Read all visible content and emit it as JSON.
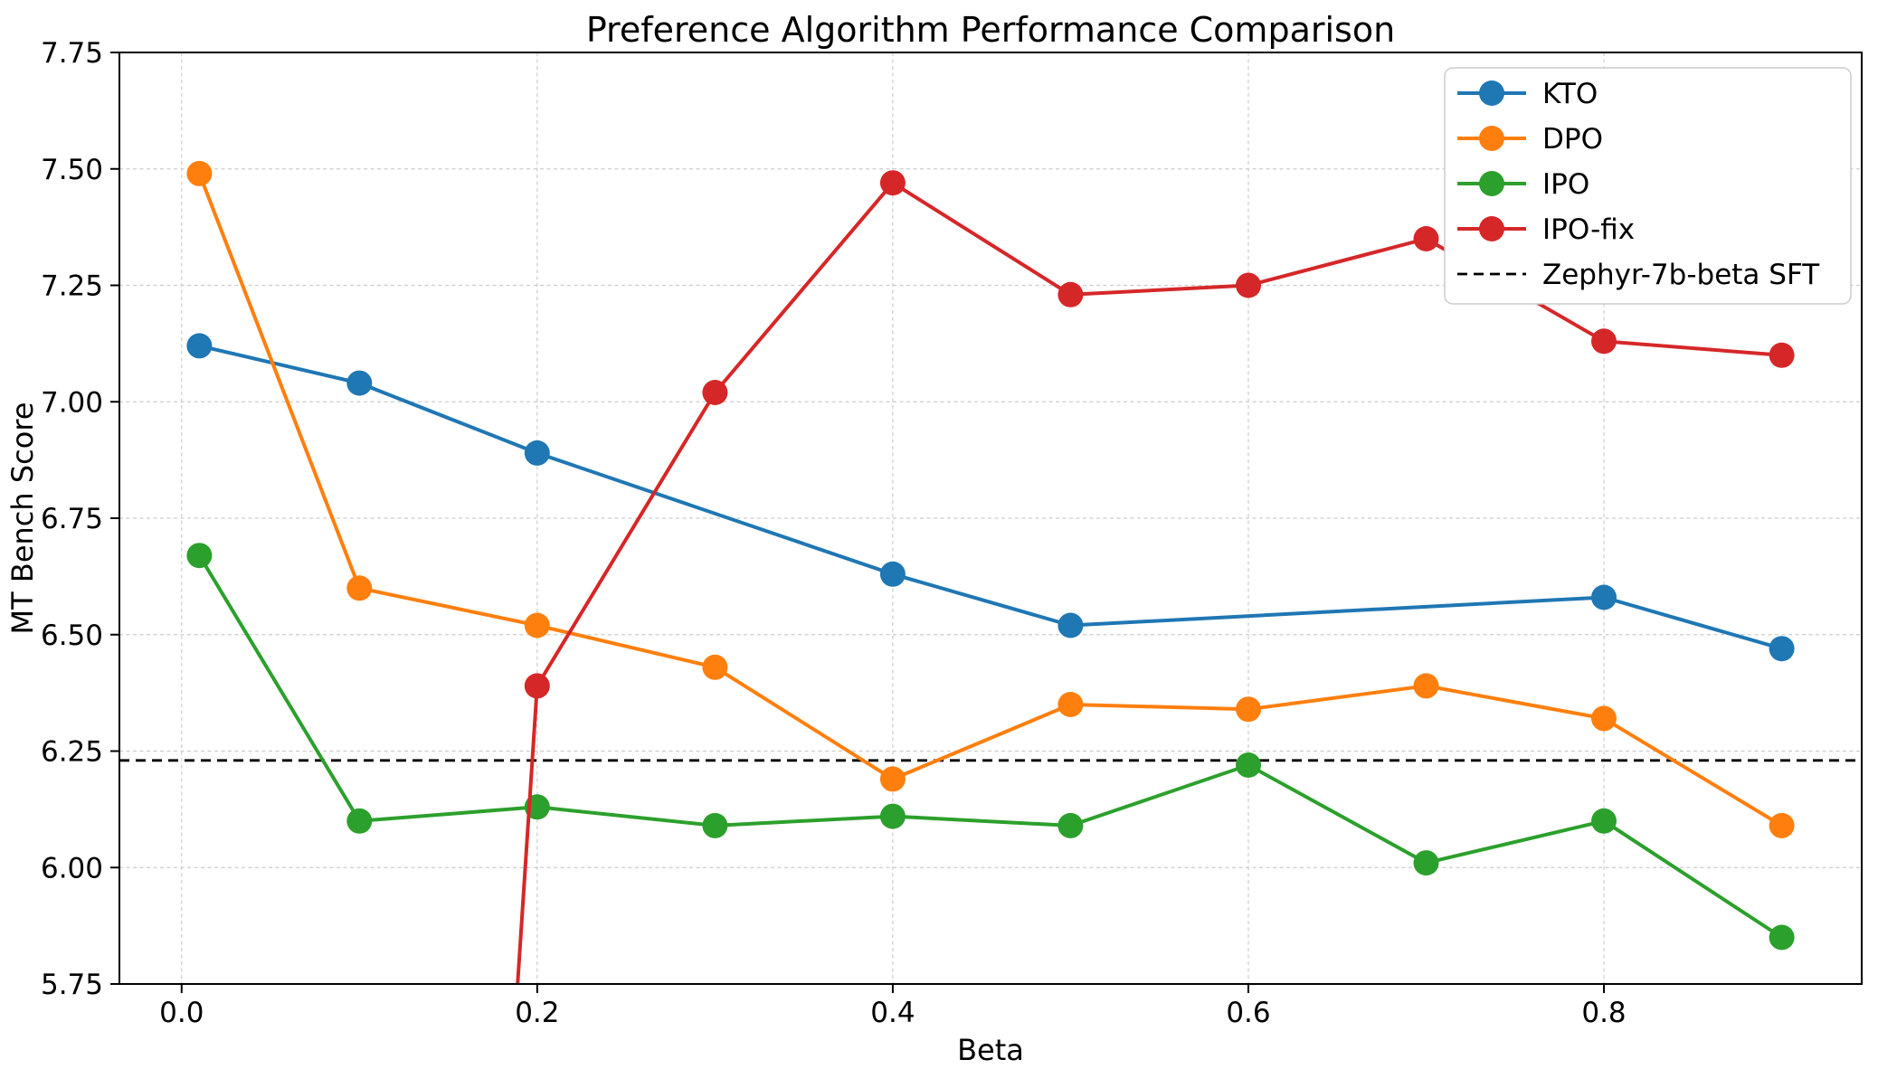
{
  "chart_data": {
    "type": "line",
    "title": "Preference Algorithm Performance Comparison",
    "xlabel": "Beta",
    "ylabel": "MT Bench Score",
    "xlim": [
      -0.035,
      0.945
    ],
    "ylim": [
      5.75,
      7.75
    ],
    "x_ticks": [
      0.0,
      0.2,
      0.4,
      0.6,
      0.8
    ],
    "x_tick_labels": [
      "0.0",
      "0.2",
      "0.4",
      "0.6",
      "0.8"
    ],
    "y_ticks": [
      5.75,
      6.0,
      6.25,
      6.5,
      6.75,
      7.0,
      7.25,
      7.5,
      7.75
    ],
    "y_tick_labels": [
      "5.75",
      "6.00",
      "6.25",
      "6.50",
      "6.75",
      "7.00",
      "7.25",
      "7.50",
      "7.75"
    ],
    "grid": true,
    "legend_position": "upper right",
    "series": [
      {
        "name": "KTO",
        "color": "#1f77b4",
        "marker": "circle",
        "points": [
          [
            0.01,
            7.12
          ],
          [
            0.1,
            7.04
          ],
          [
            0.2,
            6.89
          ],
          [
            0.4,
            6.63
          ],
          [
            0.5,
            6.52
          ],
          [
            0.8,
            6.58
          ],
          [
            0.9,
            6.47
          ]
        ]
      },
      {
        "name": "DPO",
        "color": "#ff7f0e",
        "marker": "circle",
        "points": [
          [
            0.01,
            7.49
          ],
          [
            0.1,
            6.6
          ],
          [
            0.2,
            6.52
          ],
          [
            0.3,
            6.43
          ],
          [
            0.4,
            6.19
          ],
          [
            0.5,
            6.35
          ],
          [
            0.6,
            6.34
          ],
          [
            0.7,
            6.39
          ],
          [
            0.8,
            6.32
          ],
          [
            0.9,
            6.09
          ]
        ]
      },
      {
        "name": "IPO",
        "color": "#2ca02c",
        "marker": "circle",
        "points": [
          [
            0.01,
            6.67
          ],
          [
            0.1,
            6.1
          ],
          [
            0.2,
            6.13
          ],
          [
            0.3,
            6.09
          ],
          [
            0.4,
            6.11
          ],
          [
            0.5,
            6.09
          ],
          [
            0.6,
            6.22
          ],
          [
            0.7,
            6.01
          ],
          [
            0.8,
            6.1
          ],
          [
            0.9,
            5.85
          ]
        ]
      },
      {
        "name": "IPO-fix",
        "color": "#d62728",
        "marker": "circle",
        "line_enters_from_below_axis_at_x": 0.189,
        "points": [
          [
            0.2,
            6.39
          ],
          [
            0.3,
            7.02
          ],
          [
            0.4,
            7.47
          ],
          [
            0.5,
            7.23
          ],
          [
            0.6,
            7.25
          ],
          [
            0.7,
            7.35
          ],
          [
            0.8,
            7.13
          ],
          [
            0.9,
            7.1
          ]
        ]
      }
    ],
    "baseline": {
      "label": "Zephyr-7b-beta SFT",
      "value": 6.23,
      "color": "#000000",
      "style": "dashed"
    }
  }
}
